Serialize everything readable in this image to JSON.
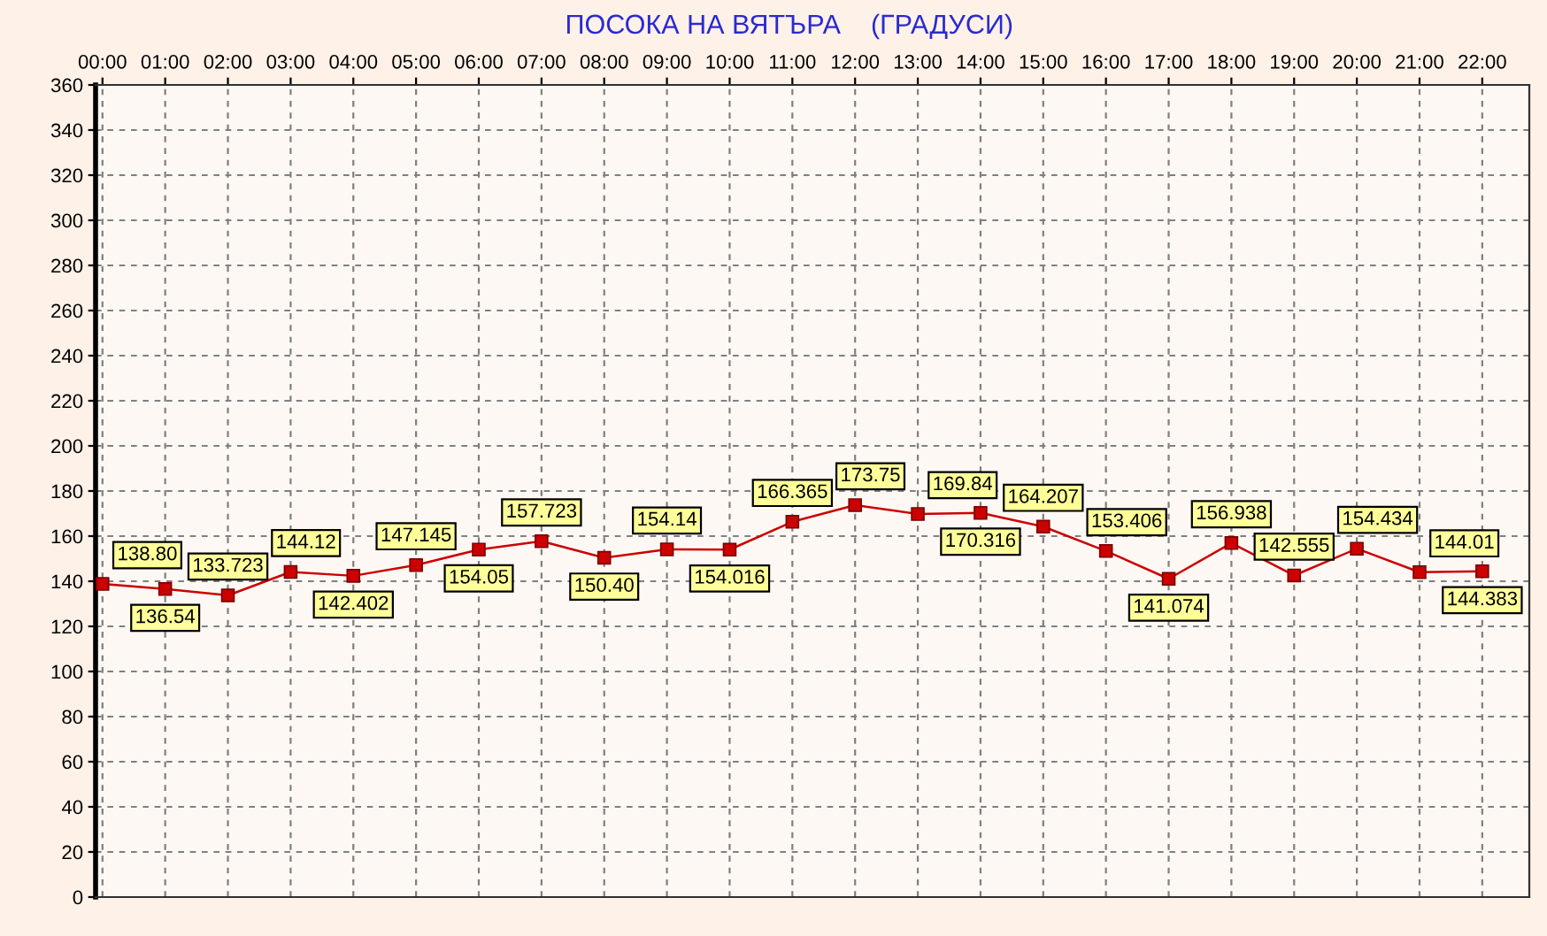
{
  "chart_data": {
    "type": "line",
    "title": "ПОСОКА НА ВЯТЪРА    (ГРАДУСИ)",
    "categories": [
      "00:00",
      "01:00",
      "02:00",
      "03:00",
      "04:00",
      "05:00",
      "06:00",
      "07:00",
      "08:00",
      "09:00",
      "10:00",
      "11:00",
      "12:00",
      "13:00",
      "14:00",
      "15:00",
      "16:00",
      "17:00",
      "18:00",
      "19:00",
      "20:00",
      "21:00",
      "22:00"
    ],
    "series": [
      {
        "color": "#cc0000",
        "values": [
          138.8,
          136.54,
          133.723,
          144.12,
          142.402,
          147.145,
          154.05,
          157.723,
          150.4,
          154.14,
          154.016,
          166.365,
          173.75,
          169.84,
          170.316,
          164.207,
          153.406,
          141.074,
          156.938,
          142.555,
          154.434,
          144.01,
          144.383
        ],
        "value_labels": [
          "138.80",
          "136.54",
          "133.723",
          "144.12",
          "142.402",
          "147.145",
          "154.05",
          "157.723",
          "150.40",
          "154.14",
          "154.016",
          "166.365",
          "173.75",
          "169.84",
          "170.316",
          "164.207",
          "153.406",
          "141.074",
          "156.938",
          "142.555",
          "154.434",
          "144.01",
          "144.383"
        ]
      }
    ],
    "ylim": [
      0,
      360
    ],
    "yticks": [
      0,
      20,
      40,
      60,
      80,
      100,
      120,
      140,
      160,
      180,
      200,
      220,
      240,
      260,
      280,
      300,
      320,
      340,
      360
    ],
    "grid": true,
    "marker": "square",
    "line_style": "solid"
  }
}
